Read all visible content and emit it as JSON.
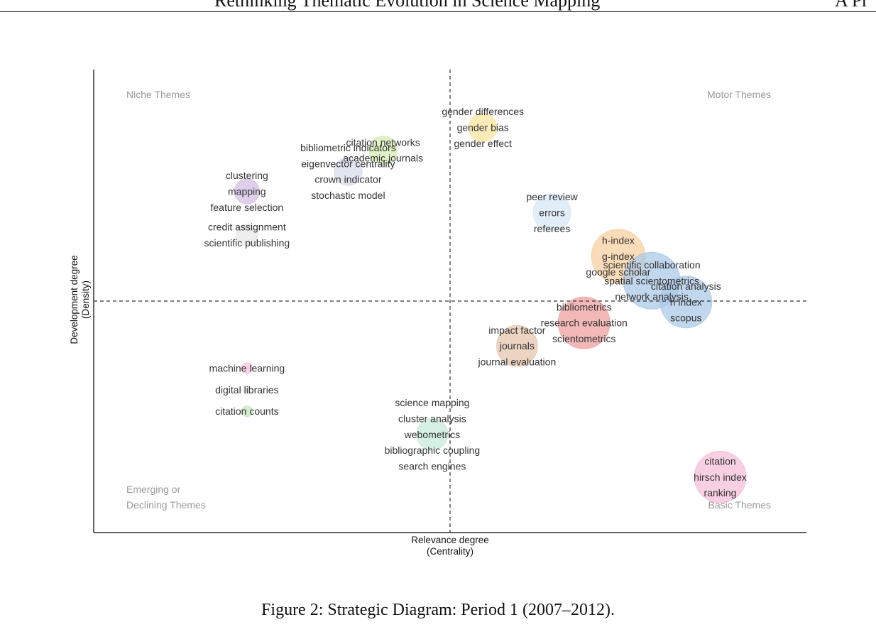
{
  "header": {
    "title_partial": "Rethinking Thematic Evolution in Science Mapping",
    "right_partial": "A Pr"
  },
  "caption": "Figure 2: Strategic Diagram: Period 1 (2007–2012).",
  "chart_data": {
    "type": "scatter",
    "title": "",
    "xlabel": "Relevance degree\n(Centrality)",
    "ylabel": "Development degree\n(Density)",
    "grid": false,
    "ticks": false,
    "quadrant_labels": [
      {
        "text": "Niche Themes",
        "position": "top-left"
      },
      {
        "text": "Motor Themes",
        "position": "top-right"
      },
      {
        "text": "Emerging or\nDeclining Themes",
        "position": "bottom-left"
      },
      {
        "text": "Basic Themes",
        "position": "bottom-right"
      }
    ],
    "reference_lines": {
      "x": 0.5,
      "y": 0.5
    },
    "xlim": [
      0,
      1
    ],
    "ylim": [
      0,
      1
    ],
    "clusters": [
      {
        "x": 0.546,
        "y": 0.875,
        "size": 0.35,
        "color": "#f9e39a",
        "labels": [
          "gender differences",
          "gender bias",
          "gender effect"
        ]
      },
      {
        "x": 0.406,
        "y": 0.826,
        "size": 0.35,
        "color": "#d6ecb2",
        "labels": [
          "citation networks",
          "academic journals"
        ]
      },
      {
        "x": 0.357,
        "y": 0.78,
        "size": 0.35,
        "color": "#d7dcec",
        "labels": [
          "bibliometric indicators",
          "eigenvector centrality",
          "crown indicator",
          "stochastic model"
        ]
      },
      {
        "x": 0.215,
        "y": 0.737,
        "size": 0.3,
        "color": "#d3bde3",
        "labels": [
          "clustering",
          "mapping",
          "feature selection"
        ]
      },
      {
        "x": 0.215,
        "y": 0.643,
        "size": 0.25,
        "color": "#e7e7e7",
        "labels": [
          "credit assignment",
          "scientific publishing"
        ]
      },
      {
        "x": 0.643,
        "y": 0.691,
        "size": 0.5,
        "color": "#d6e8f5",
        "labels": [
          "peer review",
          "errors",
          "referees"
        ]
      },
      {
        "x": 0.736,
        "y": 0.597,
        "size": 0.75,
        "color": "#f8cf9e",
        "labels": [
          "h-index",
          "g-index",
          "google scholar"
        ]
      },
      {
        "x": 0.783,
        "y": 0.544,
        "size": 0.8,
        "color": "#a9c8e6",
        "labels": [
          "scientific collaboration",
          "spatial scientometrics",
          "network analysis"
        ]
      },
      {
        "x": 0.831,
        "y": 0.498,
        "size": 0.72,
        "color": "#a9c8e6",
        "labels": [
          "citation analysis",
          "h index",
          "scopus"
        ]
      },
      {
        "x": 0.688,
        "y": 0.453,
        "size": 0.72,
        "color": "#ef9e9e",
        "labels": [
          "bibliometrics",
          "research evaluation",
          "scientometrics"
        ]
      },
      {
        "x": 0.594,
        "y": 0.403,
        "size": 0.55,
        "color": "#e5c3ac",
        "labels": [
          "impact factor",
          "journals",
          "journal evaluation"
        ]
      },
      {
        "x": 0.215,
        "y": 0.355,
        "size": 0.08,
        "color": "#f5c2dc",
        "labels": [
          "machine learning"
        ]
      },
      {
        "x": 0.215,
        "y": 0.308,
        "size": 0.06,
        "color": "#eeeeee",
        "labels": [
          "digital libraries"
        ]
      },
      {
        "x": 0.215,
        "y": 0.262,
        "size": 0.08,
        "color": "#c6e6c0",
        "labels": [
          "citation counts"
        ]
      },
      {
        "x": 0.475,
        "y": 0.212,
        "size": 0.4,
        "color": "#c6ead8",
        "labels": [
          "science mapping",
          "cluster analysis",
          "webometrics",
          "bibliographic coupling",
          "search engines"
        ]
      },
      {
        "x": 0.879,
        "y": 0.12,
        "size": 0.72,
        "color": "#f5bdd8",
        "labels": [
          "citation",
          "hirsch index",
          "ranking"
        ]
      }
    ]
  }
}
